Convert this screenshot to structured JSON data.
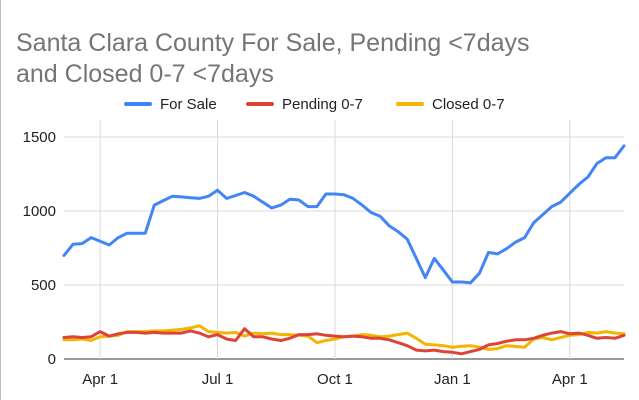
{
  "chart_data": {
    "type": "line",
    "title_lines": [
      "Santa Clara County For Sale, Pending <7days",
      "and Closed 0-7 <7days"
    ],
    "x_ticks": [
      "Apr 1",
      "Jul 1",
      "Oct 1",
      "Jan 1",
      "Apr 1"
    ],
    "x_tick_weeks": [
      4,
      17,
      30,
      43,
      56
    ],
    "x_weeks": [
      0,
      1,
      2,
      3,
      4,
      5,
      6,
      7,
      8,
      9,
      10,
      11,
      12,
      13,
      14,
      15,
      16,
      17,
      18,
      19,
      20,
      21,
      22,
      23,
      24,
      25,
      26,
      27,
      28,
      29,
      30,
      31,
      32,
      33,
      34,
      35,
      36,
      37,
      38,
      39,
      40,
      41,
      42,
      43,
      44,
      45,
      46,
      47,
      48,
      49,
      50,
      51,
      52,
      53,
      54,
      55,
      56,
      57,
      58,
      59,
      60,
      61,
      62
    ],
    "y_ticks": [
      0,
      500,
      1000,
      1500
    ],
    "ylim": [
      0,
      1500
    ],
    "grid": true,
    "legend_position": "top",
    "series": [
      {
        "name": "For Sale",
        "color": "#4285f4",
        "values": [
          700,
          775,
          780,
          820,
          795,
          770,
          820,
          850,
          850,
          850,
          1040,
          1070,
          1100,
          1095,
          1090,
          1085,
          1100,
          1140,
          1085,
          1105,
          1125,
          1100,
          1060,
          1020,
          1040,
          1080,
          1075,
          1030,
          1030,
          1115,
          1115,
          1110,
          1085,
          1040,
          990,
          965,
          900,
          860,
          810,
          680,
          550,
          680,
          600,
          520,
          520,
          515,
          580,
          720,
          710,
          745,
          790,
          820,
          920,
          975,
          1030,
          1060,
          1120,
          1180,
          1230,
          1320,
          1360,
          1360,
          1440
        ]
      },
      {
        "name": "Pending 0-7",
        "color": "#db4437",
        "values": [
          145,
          150,
          145,
          150,
          185,
          155,
          170,
          180,
          180,
          175,
          180,
          175,
          175,
          175,
          190,
          175,
          150,
          165,
          135,
          125,
          205,
          150,
          150,
          135,
          125,
          140,
          165,
          165,
          170,
          160,
          155,
          150,
          155,
          150,
          140,
          140,
          130,
          110,
          90,
          60,
          55,
          60,
          50,
          45,
          35,
          50,
          65,
          95,
          105,
          120,
          130,
          130,
          140,
          160,
          175,
          185,
          170,
          175,
          160,
          140,
          145,
          140,
          160
        ]
      },
      {
        "name": "Closed 0-7",
        "color": "#f4b400",
        "values": [
          130,
          130,
          135,
          125,
          150,
          155,
          160,
          185,
          185,
          185,
          190,
          190,
          195,
          200,
          210,
          225,
          185,
          180,
          175,
          180,
          155,
          175,
          170,
          175,
          165,
          165,
          160,
          155,
          110,
          125,
          135,
          150,
          155,
          165,
          160,
          150,
          155,
          165,
          175,
          140,
          100,
          95,
          90,
          80,
          85,
          90,
          80,
          65,
          70,
          90,
          85,
          80,
          135,
          145,
          130,
          145,
          160,
          165,
          180,
          175,
          185,
          175,
          170
        ]
      }
    ]
  }
}
